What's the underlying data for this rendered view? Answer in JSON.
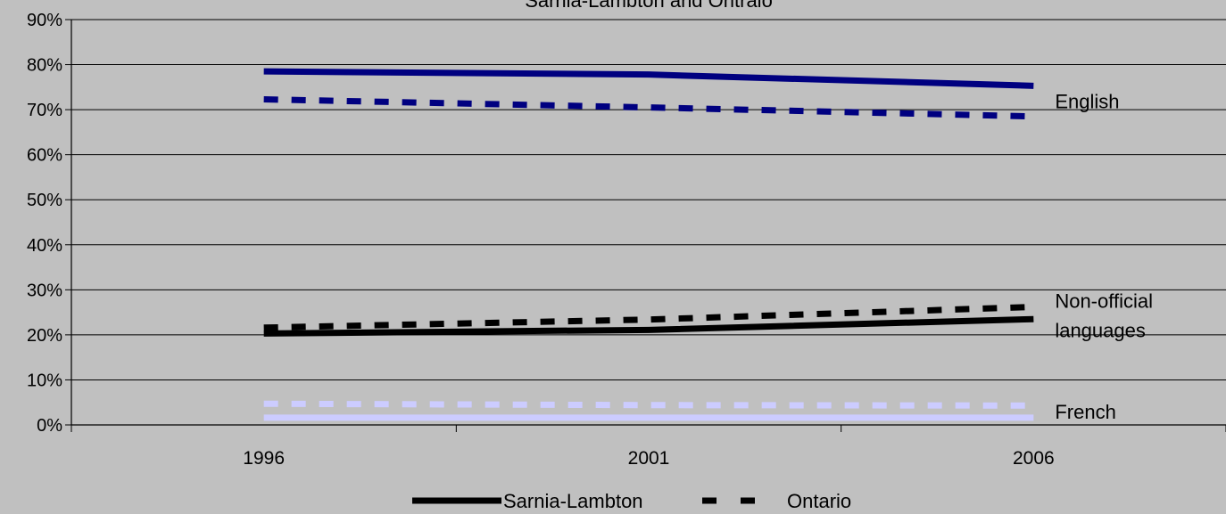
{
  "chart_data": {
    "type": "line",
    "title": "Sarnia-Lambton and Ontraio",
    "xlabel": "",
    "ylabel": "",
    "x": [
      "1996",
      "2001",
      "2006"
    ],
    "ylim": [
      0,
      90
    ],
    "y_ticks": [
      "0%",
      "10%",
      "20%",
      "30%",
      "40%",
      "50%",
      "60%",
      "70%",
      "80%",
      "90%"
    ],
    "grid": true,
    "legend": {
      "placement": "bottom",
      "entries": [
        {
          "label": "Sarnia-Lambton",
          "style": "solid"
        },
        {
          "label": "Ontario",
          "style": "dashed"
        }
      ]
    },
    "annotations": [
      {
        "text": "English",
        "series": "english"
      },
      {
        "lines": [
          "Non-official",
          "languages"
        ],
        "series": "nonofficial"
      },
      {
        "text": "French",
        "series": "french"
      }
    ],
    "series": [
      {
        "group": "english",
        "region": "Sarnia-Lambton",
        "style": "solid",
        "color": "#000080",
        "values": [
          78.5,
          77.8,
          75.3
        ]
      },
      {
        "group": "english",
        "region": "Ontario",
        "style": "dashed",
        "color": "#000080",
        "values": [
          72.3,
          70.5,
          68.5
        ]
      },
      {
        "group": "nonofficial",
        "region": "Sarnia-Lambton",
        "style": "solid",
        "color": "#000000",
        "values": [
          20.3,
          21.1,
          23.5
        ]
      },
      {
        "group": "nonofficial",
        "region": "Ontario",
        "style": "dashed",
        "color": "#000000",
        "values": [
          21.6,
          23.4,
          26.2
        ]
      },
      {
        "group": "french",
        "region": "Sarnia-Lambton",
        "style": "solid",
        "color": "#ccccff",
        "values": [
          1.6,
          1.6,
          1.6
        ]
      },
      {
        "group": "french",
        "region": "Ontario",
        "style": "dashed",
        "color": "#ccccff",
        "values": [
          4.7,
          4.4,
          4.3
        ]
      }
    ]
  }
}
